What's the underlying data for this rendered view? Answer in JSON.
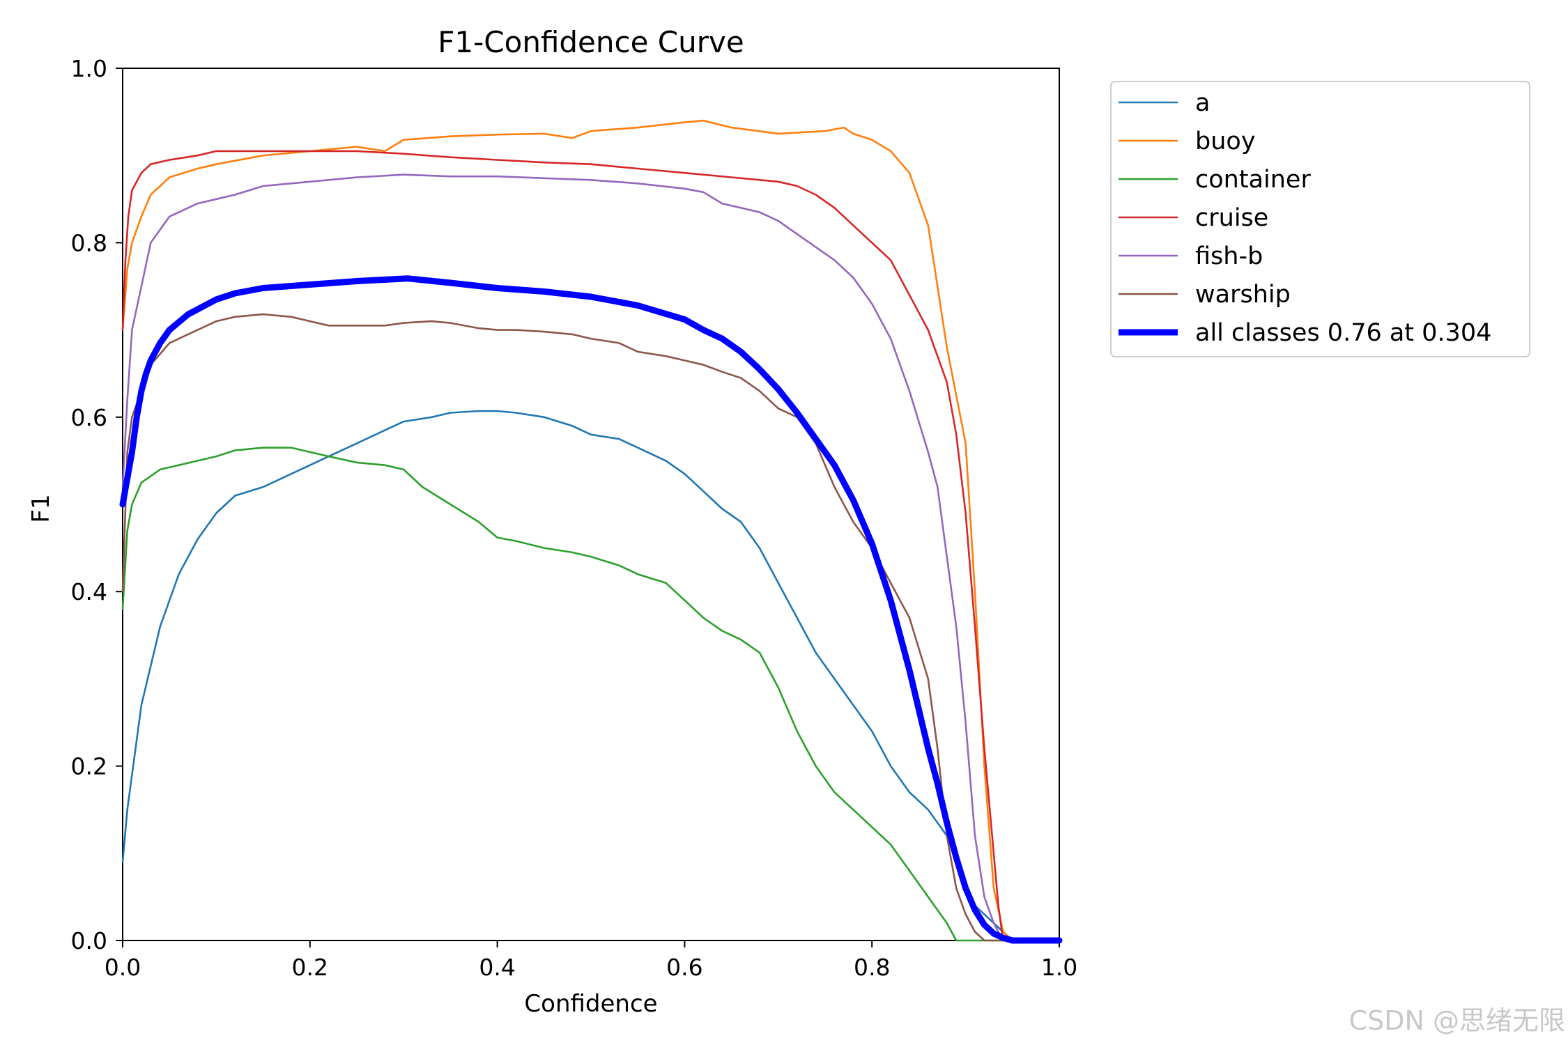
{
  "chart_data": {
    "type": "line",
    "title": "F1-Confidence Curve",
    "xlabel": "Confidence",
    "ylabel": "F1",
    "xlim": [
      0.0,
      1.0
    ],
    "ylim": [
      0.0,
      1.0
    ],
    "xticks": [
      "0.0",
      "0.2",
      "0.4",
      "0.6",
      "0.8",
      "1.0"
    ],
    "yticks": [
      "0.0",
      "0.2",
      "0.4",
      "0.6",
      "0.8",
      "1.0"
    ],
    "grid": false,
    "legend_position": "outside-top-right",
    "series": [
      {
        "name": "a",
        "label": "a",
        "color": "#1f77b4",
        "emphasis": false,
        "x": [
          0.0,
          0.005,
          0.02,
          0.04,
          0.06,
          0.08,
          0.1,
          0.12,
          0.15,
          0.18,
          0.2,
          0.22,
          0.25,
          0.28,
          0.3,
          0.33,
          0.35,
          0.38,
          0.4,
          0.42,
          0.45,
          0.48,
          0.5,
          0.53,
          0.55,
          0.58,
          0.6,
          0.62,
          0.64,
          0.66,
          0.68,
          0.7,
          0.72,
          0.74,
          0.76,
          0.78,
          0.8,
          0.82,
          0.84,
          0.86,
          0.88,
          0.89,
          0.9,
          0.91,
          0.92,
          0.93,
          0.94,
          0.95,
          1.0
        ],
        "values": [
          0.09,
          0.15,
          0.27,
          0.36,
          0.42,
          0.46,
          0.49,
          0.51,
          0.52,
          0.535,
          0.545,
          0.555,
          0.57,
          0.585,
          0.595,
          0.6,
          0.605,
          0.607,
          0.607,
          0.605,
          0.6,
          0.59,
          0.58,
          0.575,
          0.565,
          0.55,
          0.535,
          0.515,
          0.495,
          0.48,
          0.45,
          0.41,
          0.37,
          0.33,
          0.3,
          0.27,
          0.24,
          0.2,
          0.17,
          0.15,
          0.12,
          0.09,
          0.06,
          0.04,
          0.03,
          0.02,
          0.01,
          0.0,
          0.0
        ]
      },
      {
        "name": "buoy",
        "label": "buoy",
        "color": "#ff7f0e",
        "emphasis": false,
        "x": [
          0.0,
          0.005,
          0.01,
          0.02,
          0.03,
          0.05,
          0.08,
          0.1,
          0.15,
          0.2,
          0.25,
          0.28,
          0.3,
          0.35,
          0.4,
          0.45,
          0.48,
          0.5,
          0.55,
          0.6,
          0.62,
          0.65,
          0.7,
          0.75,
          0.77,
          0.78,
          0.8,
          0.82,
          0.84,
          0.86,
          0.88,
          0.9,
          0.91,
          0.92,
          0.93,
          0.94,
          0.95,
          1.0
        ],
        "values": [
          0.7,
          0.77,
          0.8,
          0.83,
          0.855,
          0.875,
          0.885,
          0.89,
          0.9,
          0.905,
          0.91,
          0.905,
          0.918,
          0.922,
          0.924,
          0.925,
          0.92,
          0.928,
          0.932,
          0.938,
          0.94,
          0.932,
          0.925,
          0.928,
          0.932,
          0.925,
          0.918,
          0.905,
          0.88,
          0.82,
          0.68,
          0.57,
          0.4,
          0.2,
          0.06,
          0.01,
          0.0,
          0.0
        ]
      },
      {
        "name": "container",
        "label": "container",
        "color": "#2ca02c",
        "emphasis": false,
        "x": [
          0.0,
          0.005,
          0.01,
          0.02,
          0.04,
          0.06,
          0.08,
          0.1,
          0.12,
          0.15,
          0.18,
          0.2,
          0.22,
          0.25,
          0.28,
          0.3,
          0.32,
          0.35,
          0.38,
          0.4,
          0.42,
          0.45,
          0.48,
          0.5,
          0.53,
          0.55,
          0.58,
          0.6,
          0.62,
          0.64,
          0.66,
          0.68,
          0.7,
          0.72,
          0.74,
          0.76,
          0.78,
          0.8,
          0.82,
          0.84,
          0.86,
          0.88,
          0.885,
          0.89,
          1.0
        ],
        "values": [
          0.38,
          0.47,
          0.5,
          0.525,
          0.54,
          0.545,
          0.55,
          0.555,
          0.562,
          0.565,
          0.565,
          0.56,
          0.555,
          0.548,
          0.545,
          0.54,
          0.52,
          0.5,
          0.48,
          0.462,
          0.458,
          0.45,
          0.445,
          0.44,
          0.43,
          0.42,
          0.41,
          0.39,
          0.37,
          0.355,
          0.345,
          0.33,
          0.29,
          0.24,
          0.2,
          0.17,
          0.15,
          0.13,
          0.11,
          0.08,
          0.05,
          0.02,
          0.01,
          0.0,
          0.0
        ]
      },
      {
        "name": "cruise",
        "label": "cruise",
        "color": "#d62728",
        "emphasis": false,
        "x": [
          0.0,
          0.003,
          0.006,
          0.01,
          0.02,
          0.03,
          0.05,
          0.08,
          0.1,
          0.15,
          0.2,
          0.25,
          0.3,
          0.35,
          0.4,
          0.45,
          0.5,
          0.55,
          0.6,
          0.65,
          0.7,
          0.72,
          0.74,
          0.76,
          0.78,
          0.8,
          0.82,
          0.84,
          0.86,
          0.88,
          0.89,
          0.9,
          0.91,
          0.92,
          0.93,
          0.935,
          0.94,
          1.0
        ],
        "values": [
          0.7,
          0.78,
          0.83,
          0.86,
          0.88,
          0.89,
          0.895,
          0.9,
          0.905,
          0.905,
          0.905,
          0.905,
          0.902,
          0.898,
          0.895,
          0.892,
          0.89,
          0.885,
          0.88,
          0.875,
          0.87,
          0.865,
          0.855,
          0.84,
          0.82,
          0.8,
          0.78,
          0.74,
          0.7,
          0.64,
          0.58,
          0.49,
          0.36,
          0.22,
          0.1,
          0.04,
          0.0,
          0.0
        ]
      },
      {
        "name": "fish-b",
        "label": "fish-b",
        "color": "#9467bd",
        "emphasis": false,
        "x": [
          0.0,
          0.005,
          0.01,
          0.02,
          0.03,
          0.05,
          0.08,
          0.1,
          0.12,
          0.15,
          0.2,
          0.25,
          0.3,
          0.35,
          0.4,
          0.45,
          0.5,
          0.55,
          0.6,
          0.62,
          0.64,
          0.66,
          0.68,
          0.7,
          0.72,
          0.74,
          0.76,
          0.78,
          0.8,
          0.82,
          0.84,
          0.86,
          0.87,
          0.88,
          0.89,
          0.9,
          0.91,
          0.92,
          0.93,
          0.94,
          1.0
        ],
        "values": [
          0.52,
          0.62,
          0.7,
          0.75,
          0.8,
          0.83,
          0.845,
          0.85,
          0.855,
          0.865,
          0.87,
          0.875,
          0.878,
          0.876,
          0.876,
          0.874,
          0.872,
          0.868,
          0.862,
          0.858,
          0.845,
          0.84,
          0.835,
          0.825,
          0.81,
          0.795,
          0.78,
          0.76,
          0.73,
          0.69,
          0.63,
          0.56,
          0.52,
          0.44,
          0.36,
          0.25,
          0.12,
          0.05,
          0.02,
          0.0,
          0.0
        ]
      },
      {
        "name": "warship",
        "label": "warship",
        "color": "#8c564b",
        "emphasis": false,
        "x": [
          0.0,
          0.005,
          0.01,
          0.02,
          0.03,
          0.05,
          0.08,
          0.1,
          0.12,
          0.15,
          0.18,
          0.2,
          0.22,
          0.25,
          0.28,
          0.3,
          0.33,
          0.35,
          0.38,
          0.4,
          0.42,
          0.45,
          0.48,
          0.5,
          0.53,
          0.55,
          0.58,
          0.6,
          0.62,
          0.64,
          0.66,
          0.68,
          0.7,
          0.72,
          0.74,
          0.76,
          0.78,
          0.8,
          0.82,
          0.84,
          0.86,
          0.87,
          0.88,
          0.89,
          0.9,
          0.91,
          0.92,
          0.93,
          1.0
        ],
        "values": [
          0.4,
          0.56,
          0.6,
          0.63,
          0.66,
          0.685,
          0.7,
          0.71,
          0.715,
          0.718,
          0.715,
          0.71,
          0.705,
          0.705,
          0.705,
          0.708,
          0.71,
          0.708,
          0.702,
          0.7,
          0.7,
          0.698,
          0.695,
          0.69,
          0.685,
          0.675,
          0.67,
          0.665,
          0.66,
          0.652,
          0.645,
          0.63,
          0.61,
          0.6,
          0.57,
          0.52,
          0.48,
          0.45,
          0.41,
          0.37,
          0.3,
          0.22,
          0.12,
          0.06,
          0.03,
          0.01,
          0.0,
          0.0,
          0.0
        ]
      },
      {
        "name": "all classes",
        "label": "all classes 0.76 at 0.304",
        "color": "#0000ff",
        "emphasis": true,
        "x": [
          0.0,
          0.005,
          0.01,
          0.015,
          0.02,
          0.025,
          0.03,
          0.04,
          0.05,
          0.07,
          0.1,
          0.12,
          0.15,
          0.2,
          0.25,
          0.304,
          0.35,
          0.4,
          0.45,
          0.5,
          0.55,
          0.6,
          0.62,
          0.64,
          0.66,
          0.68,
          0.7,
          0.72,
          0.74,
          0.76,
          0.78,
          0.8,
          0.82,
          0.84,
          0.86,
          0.87,
          0.88,
          0.89,
          0.9,
          0.91,
          0.92,
          0.93,
          0.94,
          0.95,
          0.97,
          1.0
        ],
        "values": [
          0.5,
          0.53,
          0.56,
          0.6,
          0.63,
          0.65,
          0.665,
          0.685,
          0.7,
          0.718,
          0.735,
          0.742,
          0.748,
          0.752,
          0.756,
          0.759,
          0.754,
          0.748,
          0.744,
          0.738,
          0.728,
          0.712,
          0.7,
          0.69,
          0.675,
          0.655,
          0.632,
          0.605,
          0.575,
          0.545,
          0.505,
          0.455,
          0.39,
          0.31,
          0.22,
          0.18,
          0.135,
          0.095,
          0.06,
          0.035,
          0.018,
          0.008,
          0.003,
          0.0,
          0.0,
          0.0
        ]
      }
    ]
  },
  "watermark": {
    "text": "CSDN @思绪无限"
  }
}
